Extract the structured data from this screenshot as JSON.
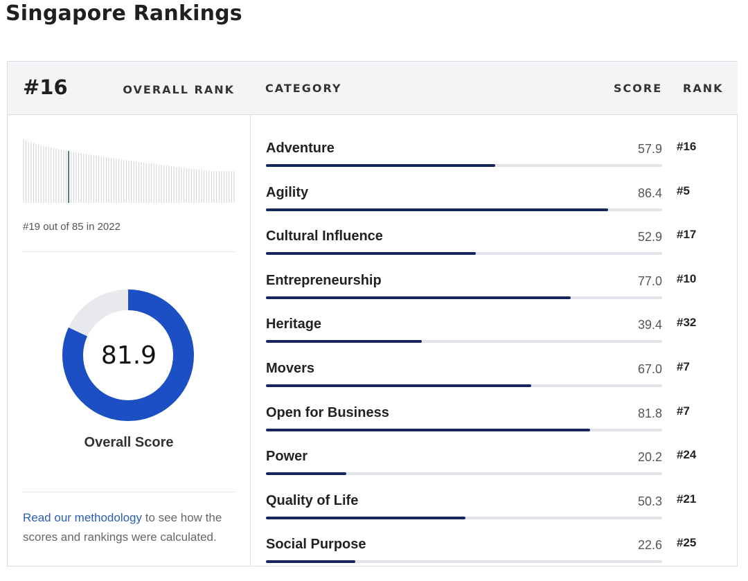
{
  "page": {
    "title": "Singapore Rankings"
  },
  "overall": {
    "rank": "#16",
    "rank_label": "OVERALL RANK",
    "history_caption": "#19 out of 85 in 2022",
    "score": "81.9",
    "score_value": 81.9,
    "score_label": "Overall Score",
    "methodology_link": "Read our methodology",
    "methodology_text": " to see how the scores and rankings were calculated."
  },
  "table": {
    "col_category": "CATEGORY",
    "col_score": "SCORE",
    "col_rank": "RANK",
    "rows": [
      {
        "name": "Adventure",
        "score": "57.9",
        "rank": "#16",
        "value": 57.9
      },
      {
        "name": "Agility",
        "score": "86.4",
        "rank": "#5",
        "value": 86.4
      },
      {
        "name": "Cultural Influence",
        "score": "52.9",
        "rank": "#17",
        "value": 52.9
      },
      {
        "name": "Entrepreneurship",
        "score": "77.0",
        "rank": "#10",
        "value": 77.0
      },
      {
        "name": "Heritage",
        "score": "39.4",
        "rank": "#32",
        "value": 39.4
      },
      {
        "name": "Movers",
        "score": "67.0",
        "rank": "#7",
        "value": 67.0
      },
      {
        "name": "Open for Business",
        "score": "81.8",
        "rank": "#7",
        "value": 81.8
      },
      {
        "name": "Power",
        "score": "20.2",
        "rank": "#24",
        "value": 20.2
      },
      {
        "name": "Quality of Life",
        "score": "50.3",
        "rank": "#21",
        "value": 50.3
      },
      {
        "name": "Social Purpose",
        "score": "22.6",
        "rank": "#25",
        "value": 22.6
      }
    ]
  },
  "colors": {
    "bar_fill": "#16265c",
    "bar_track": "#e1e4e8",
    "donut_fill": "#1d4fc4",
    "donut_track": "#e8e9ec",
    "link": "#2a5db0"
  }
}
